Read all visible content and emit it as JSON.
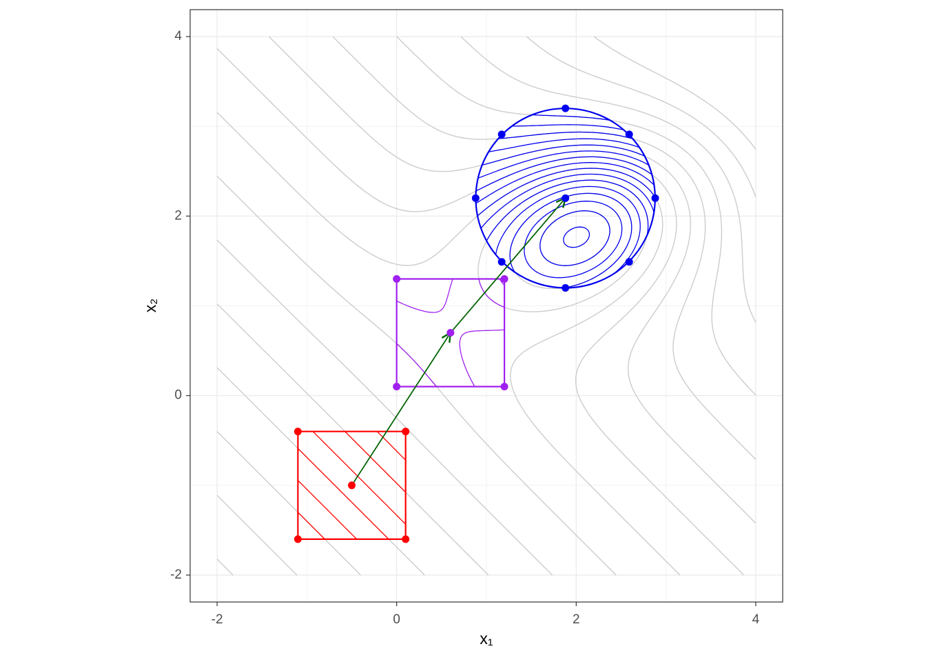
{
  "chart_data": {
    "type": "scatter",
    "xlabel": "x₁",
    "ylabel": "x₂",
    "xlim": [
      -2.3,
      4.3
    ],
    "ylim": [
      -2.3,
      4.3
    ],
    "xticks": [
      -2,
      0,
      2,
      4
    ],
    "yticks": [
      -2,
      0,
      2,
      4
    ],
    "grid": true,
    "minor_grid": true,
    "series": [
      {
        "color": "#ff0000",
        "region": "square",
        "x": [
          -0.5,
          -1.1,
          0.1,
          0.1,
          -1.1
        ],
        "y": [
          -1.0,
          -0.4,
          -0.4,
          -1.6,
          -1.6
        ]
      },
      {
        "color": "#a020f0",
        "region": "square",
        "x": [
          0.6,
          0.0,
          1.2,
          1.2,
          0.0
        ],
        "y": [
          0.7,
          1.3,
          1.3,
          0.1,
          0.1
        ]
      },
      {
        "color": "#0000ee",
        "region": "circle",
        "x": [
          1.88,
          1.88,
          2.59,
          2.88,
          2.59,
          1.88,
          1.17,
          0.88,
          1.17
        ],
        "y": [
          2.2,
          3.2,
          2.91,
          2.2,
          1.49,
          1.2,
          1.49,
          2.2,
          2.91
        ]
      }
    ],
    "path": {
      "color": "#006400",
      "x": [
        -0.5,
        0.6,
        1.88
      ],
      "y": [
        -1.0,
        0.7,
        2.2
      ]
    }
  }
}
